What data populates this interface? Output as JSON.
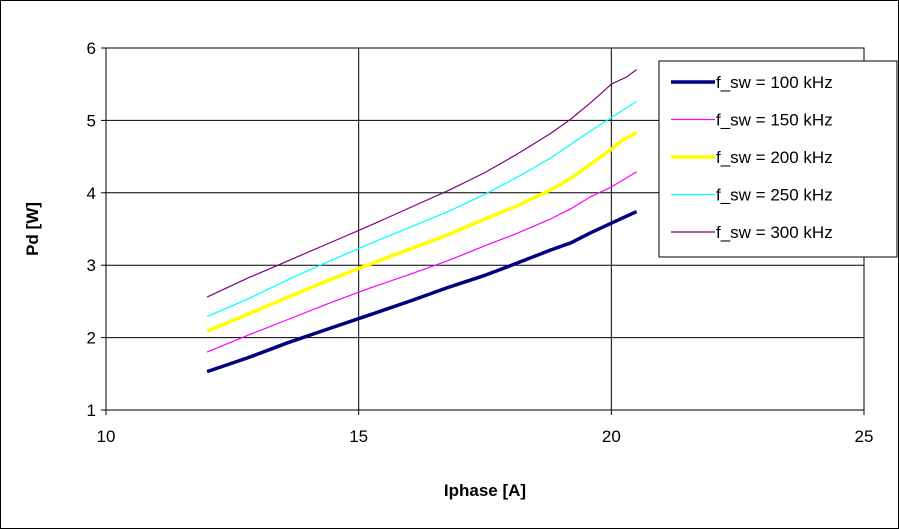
{
  "chart_data": {
    "type": "line",
    "title": "",
    "xlabel": "Iphase [A]",
    "ylabel": "Pd [W]",
    "xlim": [
      10,
      25
    ],
    "ylim": [
      1,
      6
    ],
    "xticks": [
      10,
      15,
      20,
      25
    ],
    "yticks": [
      1,
      2,
      3,
      4,
      5,
      6
    ],
    "grid": true,
    "legend_position": "top-right",
    "series": [
      {
        "name": "f_sw = 100 kHz",
        "color": "#000080",
        "x": [
          12.0,
          12.8,
          13.6,
          14.4,
          15.2,
          16.0,
          16.8,
          17.5,
          18.1,
          18.8,
          19.2,
          19.6,
          20.0,
          20.5
        ],
        "y": [
          1.53,
          1.72,
          1.93,
          2.12,
          2.31,
          2.5,
          2.7,
          2.86,
          3.02,
          3.21,
          3.31,
          3.45,
          3.58,
          3.74
        ]
      },
      {
        "name": "f_sw = 150 kHz",
        "color": "#FF00FF",
        "x": [
          12.0,
          12.8,
          13.6,
          14.4,
          15.2,
          16.0,
          16.8,
          17.5,
          18.1,
          18.8,
          19.2,
          19.6,
          20.0,
          20.5
        ],
        "y": [
          1.8,
          2.03,
          2.25,
          2.47,
          2.68,
          2.87,
          3.07,
          3.27,
          3.43,
          3.64,
          3.78,
          3.95,
          4.08,
          4.29
        ]
      },
      {
        "name": "f_sw = 200 kHz",
        "color": "#FFFF00",
        "x": [
          12.0,
          12.8,
          13.6,
          14.4,
          15.2,
          16.0,
          16.8,
          17.5,
          18.1,
          18.8,
          19.2,
          19.6,
          20.0,
          20.2,
          20.5
        ],
        "y": [
          2.09,
          2.32,
          2.56,
          2.79,
          3.01,
          3.22,
          3.43,
          3.64,
          3.81,
          4.04,
          4.2,
          4.4,
          4.6,
          4.72,
          4.83
        ]
      },
      {
        "name": "f_sw = 250 kHz",
        "color": "#00FFFF",
        "x": [
          12.0,
          12.8,
          13.6,
          14.4,
          15.2,
          16.0,
          16.8,
          17.5,
          18.1,
          18.8,
          19.2,
          19.6,
          20.0,
          20.5
        ],
        "y": [
          2.29,
          2.53,
          2.8,
          3.05,
          3.29,
          3.52,
          3.75,
          3.98,
          4.2,
          4.48,
          4.67,
          4.86,
          5.04,
          5.26
        ]
      },
      {
        "name": "f_sw = 300 kHz",
        "color": "#800080",
        "x": [
          12.0,
          12.8,
          13.6,
          14.4,
          15.2,
          16.0,
          16.8,
          17.5,
          18.1,
          18.8,
          19.2,
          19.6,
          20.0,
          20.3,
          20.5
        ],
        "y": [
          2.56,
          2.82,
          3.06,
          3.3,
          3.54,
          3.79,
          4.04,
          4.28,
          4.52,
          4.82,
          5.02,
          5.25,
          5.5,
          5.6,
          5.7
        ]
      }
    ]
  }
}
